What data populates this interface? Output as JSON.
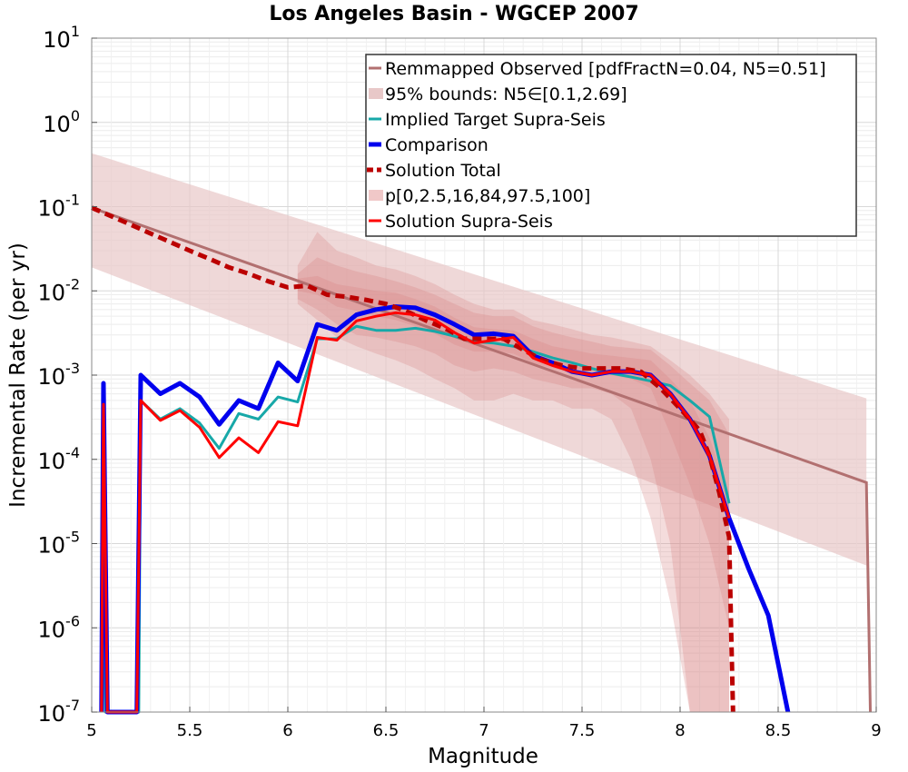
{
  "chart_data": {
    "type": "line",
    "title": "Los Angeles Basin - WGCEP 2007",
    "xlabel": "Magnitude",
    "ylabel": "Incremental Rate (per yr)",
    "xlim": [
      5,
      9
    ],
    "ylim_log10": [
      -7,
      1
    ],
    "yscale": "log",
    "grid": true,
    "legend_position": "top-right",
    "x_ticks": [
      5,
      5.5,
      6,
      6.5,
      7,
      7.5,
      8,
      8.5,
      9
    ],
    "x_tick_labels": [
      "5",
      "5.5",
      "6",
      "6.5",
      "7",
      "7.5",
      "8",
      "8.5",
      "9"
    ],
    "y_tick_exponents": [
      1,
      0,
      -1,
      -2,
      -3,
      -4,
      -5,
      -6,
      -7
    ],
    "legend": [
      {
        "label": "Remmapped Observed [pdfFractN=0.04, N5=0.51]",
        "color": "#b27070",
        "style": "line"
      },
      {
        "label": "95% bounds: N5∈[0.1,2.69]",
        "color": "#e8c8c8",
        "style": "patch"
      },
      {
        "label": "Implied Target Supra-Seis",
        "color": "#17a8a8",
        "style": "line"
      },
      {
        "label": "Comparison",
        "color": "#0000ee",
        "style": "thick-line"
      },
      {
        "label": "Solution Total",
        "color": "#bb0000",
        "style": "dashed"
      },
      {
        "label": "p[0,2.5,16,84,97.5,100]",
        "color": "#f0c8c8",
        "style": "patch"
      },
      {
        "label": "Solution Supra-Seis",
        "color": "#ff0000",
        "style": "line"
      }
    ],
    "observed": {
      "name": "Remmapped Observed [pdfFractN=0.04, N5=0.51]",
      "color": "#b27070",
      "x": [
        5,
        8.95,
        8.97
      ],
      "y": [
        0.097,
        5.3e-05,
        1e-07
      ]
    },
    "bounds95": {
      "name": "95% bounds: N5∈[0.1,2.69]",
      "color": "#e8c8c8",
      "x": [
        5,
        8.95
      ],
      "lower": [
        0.019,
        5.5e-06
      ],
      "upper": [
        0.43,
        0.00053
      ]
    },
    "percentile_bands": {
      "name": "p[0,2.5,16,84,97.5,100]",
      "color": "#d98080",
      "x": [
        6.05,
        6.15,
        6.25,
        6.35,
        6.45,
        6.55,
        6.65,
        6.75,
        6.85,
        6.95,
        7.05,
        7.15,
        7.25,
        7.35,
        7.45,
        7.55,
        7.65,
        7.75,
        7.85,
        7.95,
        8.05,
        8.15,
        8.25
      ],
      "bands": [
        {
          "lower": [
            0.007,
            0.0045,
            0.0028,
            0.0022,
            0.0018,
            0.0015,
            0.0012,
            0.0009,
            0.0007,
            0.0005,
            0.0005,
            0.0006,
            0.0005,
            0.0005,
            0.0004,
            0.0004,
            0.0003,
            0.0001,
            2e-05,
            2e-06,
            1e-07,
            1e-07,
            1e-07
          ],
          "upper": [
            0.02,
            0.05,
            0.03,
            0.025,
            0.02,
            0.018,
            0.015,
            0.012,
            0.009,
            0.007,
            0.006,
            0.006,
            0.0045,
            0.004,
            0.0035,
            0.003,
            0.0028,
            0.0025,
            0.0022,
            0.0015,
            0.001,
            0.0006,
            0.0003
          ]
        },
        {
          "lower": [
            0.008,
            0.006,
            0.004,
            0.003,
            0.0028,
            0.0025,
            0.0022,
            0.0018,
            0.0013,
            0.0011,
            0.0012,
            0.0011,
            0.0009,
            0.0008,
            0.0007,
            0.0007,
            0.0006,
            0.0004,
            0.0001,
            1e-05,
            1e-07,
            1e-07,
            1e-07
          ],
          "upper": [
            0.016,
            0.025,
            0.02,
            0.017,
            0.015,
            0.013,
            0.011,
            0.009,
            0.007,
            0.0055,
            0.005,
            0.005,
            0.0038,
            0.0032,
            0.0028,
            0.0025,
            0.0022,
            0.0021,
            0.002,
            0.0013,
            0.0008,
            0.0005,
            0.0002
          ]
        },
        {
          "lower": [
            0.01,
            0.009,
            0.0065,
            0.0058,
            0.005,
            0.0045,
            0.0038,
            0.0031,
            0.0023,
            0.0019,
            0.0019,
            0.0018,
            0.0014,
            0.0012,
            0.0011,
            0.0011,
            0.001,
            0.0009,
            0.0007,
            0.0002,
            5e-05,
            1e-05,
            1e-06
          ],
          "upper": [
            0.014,
            0.015,
            0.012,
            0.011,
            0.01,
            0.0095,
            0.008,
            0.0065,
            0.0048,
            0.0037,
            0.0035,
            0.0034,
            0.0027,
            0.0022,
            0.002,
            0.0018,
            0.0017,
            0.0016,
            0.0015,
            0.0009,
            0.0005,
            0.00018,
            4e-05
          ]
        }
      ]
    },
    "series": [
      {
        "name": "Implied Target Supra-Seis",
        "color": "#17a8a8",
        "x": [
          5.05,
          5.06,
          5.07,
          5.24,
          5.25,
          5.35,
          5.45,
          5.55,
          5.65,
          5.75,
          5.85,
          5.95,
          6.05,
          6.15,
          6.25,
          6.35,
          6.45,
          6.55,
          6.65,
          6.75,
          6.85,
          6.95,
          7.05,
          7.15,
          7.25,
          7.35,
          7.45,
          7.55,
          7.65,
          7.75,
          7.85,
          7.95,
          8.05,
          8.15,
          8.25
        ],
        "y": [
          1e-07,
          0.0002,
          1e-07,
          1e-07,
          0.0005,
          0.0003,
          0.0004,
          0.00027,
          0.000135,
          0.00035,
          0.0003,
          0.00055,
          0.00048,
          0.0027,
          0.0027,
          0.0038,
          0.0034,
          0.0034,
          0.0036,
          0.0033,
          0.0029,
          0.0025,
          0.0024,
          0.0022,
          0.0019,
          0.0016,
          0.0014,
          0.0012,
          0.00105,
          0.00095,
          0.00085,
          0.00075,
          0.0005,
          0.00032,
          3e-05
        ]
      },
      {
        "name": "Comparison",
        "color": "#0000ee",
        "x": [
          5.05,
          5.06,
          5.08,
          5.23,
          5.25,
          5.35,
          5.45,
          5.55,
          5.65,
          5.75,
          5.85,
          5.95,
          6.05,
          6.15,
          6.25,
          6.35,
          6.45,
          6.55,
          6.65,
          6.75,
          6.85,
          6.95,
          7.05,
          7.15,
          7.25,
          7.35,
          7.45,
          7.55,
          7.65,
          7.75,
          7.85,
          7.95,
          8.05,
          8.15,
          8.25,
          8.35,
          8.45,
          8.55
        ],
        "y": [
          1e-07,
          0.0008,
          1e-07,
          1e-07,
          0.001,
          0.0006,
          0.0008,
          0.00055,
          0.00026,
          0.0005,
          0.0004,
          0.0014,
          0.00085,
          0.004,
          0.0034,
          0.0052,
          0.006,
          0.0065,
          0.0063,
          0.0052,
          0.004,
          0.003,
          0.0031,
          0.0029,
          0.0017,
          0.0014,
          0.0011,
          0.001,
          0.0011,
          0.0011,
          0.001,
          0.0006,
          0.0003,
          0.00011,
          2e-05,
          5e-06,
          1.4e-06,
          1e-07
        ]
      },
      {
        "name": "Solution Total",
        "color": "#bb0000",
        "dashed": true,
        "x": [
          5,
          5.1,
          5.2,
          5.3,
          5.4,
          5.5,
          5.6,
          5.7,
          5.8,
          5.9,
          6.0,
          6.1,
          6.2,
          6.3,
          6.4,
          6.5,
          6.6,
          6.7,
          6.8,
          6.9,
          7.0,
          7.1,
          7.2,
          7.3,
          7.4,
          7.5,
          7.6,
          7.7,
          7.8,
          7.9,
          8.0,
          8.1,
          8.15,
          8.2,
          8.25,
          8.26,
          8.27
        ],
        "y": [
          0.097,
          0.077,
          0.061,
          0.048,
          0.038,
          0.03,
          0.024,
          0.019,
          0.016,
          0.013,
          0.011,
          0.0115,
          0.009,
          0.0085,
          0.0078,
          0.007,
          0.0058,
          0.0045,
          0.0036,
          0.0027,
          0.0027,
          0.0027,
          0.002,
          0.0015,
          0.0013,
          0.0012,
          0.0012,
          0.0012,
          0.0011,
          0.0007,
          0.0004,
          0.00022,
          0.00011,
          4e-05,
          1.2e-05,
          1e-06,
          1e-07
        ]
      },
      {
        "name": "Solution Supra-Seis",
        "color": "#ff0000",
        "x": [
          5.05,
          5.06,
          5.08,
          5.23,
          5.25,
          5.35,
          5.45,
          5.55,
          5.65,
          5.75,
          5.85,
          5.95,
          6.05,
          6.15,
          6.25,
          6.35,
          6.45,
          6.55,
          6.65,
          6.75,
          6.85,
          6.95,
          7.05,
          7.15,
          7.25,
          7.35,
          7.45,
          7.55,
          7.65,
          7.75,
          7.85,
          7.95,
          8.05,
          8.15,
          8.25
        ],
        "y": [
          1e-07,
          0.00045,
          1e-07,
          1e-07,
          0.0005,
          0.00029,
          0.00038,
          0.00024,
          0.000105,
          0.00018,
          0.00012,
          0.00028,
          0.00025,
          0.0028,
          0.0026,
          0.0044,
          0.005,
          0.0055,
          0.0052,
          0.0045,
          0.0032,
          0.0024,
          0.0026,
          0.0028,
          0.0016,
          0.0013,
          0.0011,
          0.001,
          0.0011,
          0.0011,
          0.001,
          0.0006,
          0.0003,
          0.00011,
          2e-05
        ]
      }
    ]
  }
}
